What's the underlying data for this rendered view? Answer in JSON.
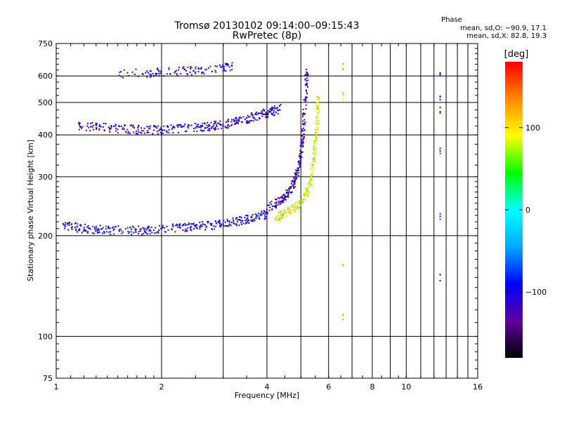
{
  "header": {
    "title_line1": "Tromsø 20130102 09:14:00–09:15:43",
    "title_line2": "RwPretec (8p)",
    "phase_label": "Phase",
    "stats_o": "mean, sd,O: −90.9, 17.1",
    "stats_x": "mean, sd,X:  82.8, 19.3"
  },
  "colorbar": {
    "unit_label": "[deg]",
    "ticks": [
      "100",
      "0",
      "−100"
    ],
    "tick_values": [
      100,
      0,
      -100
    ],
    "range": [
      -180,
      180
    ],
    "stops": [
      "#000000",
      "#6000a0",
      "#0000ff",
      "#00aaff",
      "#00ffff",
      "#00ff00",
      "#ffff00",
      "#ff8800",
      "#ff0000"
    ]
  },
  "chart_data": {
    "type": "scatter",
    "title": "Tromsø 20130102 09:14:00–09:15:43",
    "subtitle": "RwPretec (8p)",
    "xlabel": "Frequency [MHz]",
    "ylabel": "Stationary phase Virtual Height [km]",
    "x_scale": "log",
    "y_scale": "log",
    "xlim": [
      1,
      16
    ],
    "ylim": [
      75,
      750
    ],
    "x_ticks": [
      1,
      2,
      4,
      6,
      8,
      10,
      16
    ],
    "x_tick_labels": [
      "1",
      "2",
      "4",
      "6",
      "8",
      "10",
      "16"
    ],
    "y_ticks": [
      75,
      100,
      200,
      300,
      400,
      500,
      600,
      750
    ],
    "y_tick_labels": [
      "75",
      "100",
      "200",
      "300",
      "400",
      "500",
      "600",
      "750"
    ],
    "grid": true,
    "color_variable": "phase [deg]",
    "traces": [
      {
        "x": [
          1.5,
          2.0,
          2.6,
          3.2
        ],
        "y": [
          610,
          615,
          625,
          640
        ],
        "phase": -110
      },
      {
        "x": [
          1.15,
          1.4,
          1.7,
          2.0,
          2.4,
          2.8,
          3.2,
          3.6,
          4.0,
          4.4
        ],
        "y": [
          425,
          420,
          415,
          415,
          420,
          425,
          435,
          450,
          465,
          480
        ],
        "phase": -115
      },
      {
        "x": [
          1.05,
          1.2,
          1.4,
          1.7,
          2.0,
          2.4,
          2.8,
          3.2,
          3.6,
          4.0
        ],
        "y": [
          215,
          210,
          208,
          207,
          210,
          212,
          215,
          220,
          225,
          232
        ],
        "phase": -100
      },
      {
        "x": [
          4.0,
          4.4,
          4.7,
          4.9,
          5.05,
          5.15,
          5.2
        ],
        "y": [
          240,
          255,
          275,
          310,
          380,
          500,
          620
        ],
        "phase": -125
      },
      {
        "x": [
          4.2,
          4.6,
          5.0,
          5.3,
          5.45,
          5.55,
          5.6
        ],
        "y": [
          225,
          235,
          250,
          280,
          340,
          420,
          520
        ],
        "phase": 90
      },
      {
        "x": [
          6.6,
          6.6,
          6.6,
          6.6
        ],
        "y": [
          640,
          520,
          160,
          115
        ],
        "phase": 110
      },
      {
        "x": [
          12.5,
          12.5,
          12.5,
          12.5,
          12.5,
          12.5
        ],
        "y": [
          610,
          520,
          470,
          360,
          230,
          150
        ],
        "phase": -100
      }
    ]
  }
}
